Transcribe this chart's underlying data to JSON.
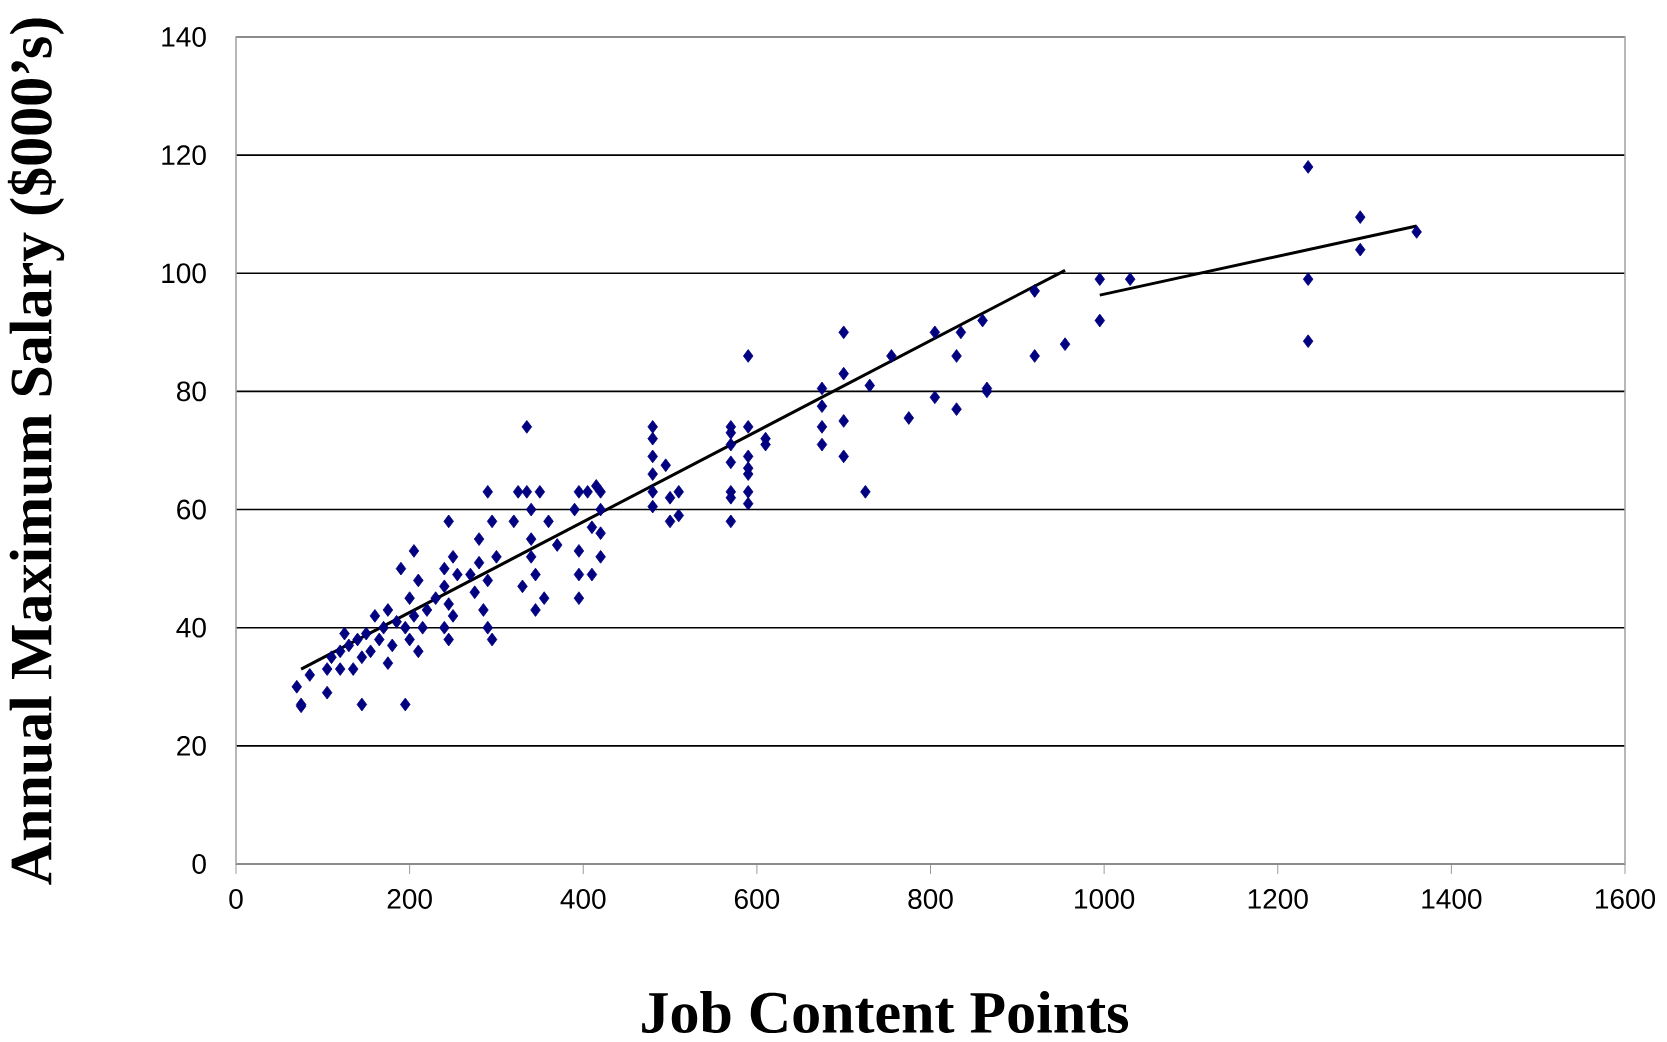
{
  "chart_data": {
    "type": "scatter",
    "xlabel": "Job Content Points",
    "ylabel": "Annual Maximum Salary ($000’s)",
    "xlim": [
      0,
      1600
    ],
    "ylim": [
      0,
      140
    ],
    "xticks": [
      0,
      200,
      400,
      600,
      800,
      1000,
      1200,
      1400,
      1600
    ],
    "yticks": [
      0,
      20,
      40,
      60,
      80,
      100,
      120,
      140
    ],
    "grid": "y",
    "marker": "diamond",
    "series": [
      {
        "color": "#000080",
        "x": [
          70,
          75,
          75,
          85,
          105,
          105,
          110,
          120,
          120,
          125,
          130,
          135,
          140,
          145,
          145,
          150,
          155,
          160,
          165,
          170,
          175,
          175,
          180,
          185,
          190,
          195,
          195,
          200,
          200,
          205,
          205,
          210,
          210,
          215,
          220,
          230,
          240,
          240,
          245,
          245,
          250,
          250,
          255,
          245,
          240,
          270,
          275,
          280,
          280,
          285,
          290,
          290,
          295,
          295,
          300,
          290,
          320,
          325,
          330,
          335,
          335,
          340,
          340,
          340,
          345,
          345,
          350,
          355,
          360,
          370,
          390,
          395,
          395,
          395,
          395,
          405,
          410,
          410,
          415,
          420,
          420,
          420,
          420,
          480,
          480,
          480,
          480,
          480,
          480,
          495,
          500,
          500,
          510,
          510,
          570,
          570,
          570,
          570,
          570,
          570,
          570,
          590,
          590,
          590,
          590,
          590,
          590,
          590,
          610,
          610,
          675,
          675,
          675,
          675,
          700,
          700,
          700,
          700,
          725,
          730,
          755,
          775,
          805,
          805,
          830,
          830,
          835,
          860,
          865,
          865,
          920,
          920,
          955,
          995,
          995,
          1030,
          1235,
          1235,
          1235,
          1295,
          1295,
          1360
        ],
        "values": [
          30,
          27,
          26.7,
          32,
          29,
          33,
          35,
          33,
          36,
          39,
          37,
          33,
          38,
          27,
          35,
          39,
          36,
          42,
          38,
          40,
          34,
          43,
          37,
          41,
          50,
          40,
          27,
          45,
          38,
          53,
          42,
          36,
          48,
          40,
          43,
          45,
          50,
          47,
          58,
          44,
          52,
          42,
          49,
          38,
          40,
          49,
          46,
          55,
          51,
          43,
          63,
          48,
          38,
          58,
          52,
          40,
          58,
          63,
          47,
          74,
          63,
          55,
          60,
          52,
          43,
          49,
          63,
          45,
          58,
          54,
          60,
          63,
          53,
          49,
          45,
          63,
          49,
          57,
          64,
          63,
          56,
          52,
          60,
          74,
          72,
          69,
          66,
          63,
          60.5,
          67.5,
          62,
          58,
          63,
          59,
          74,
          73,
          71,
          68,
          63,
          62,
          58,
          86,
          74,
          69,
          67,
          66,
          63,
          61,
          72,
          71,
          80.5,
          77.5,
          74,
          71,
          90,
          83,
          75,
          69,
          63,
          81,
          86,
          75.5,
          90,
          79,
          86,
          77,
          90,
          92,
          80.5,
          80,
          97,
          86,
          88,
          99,
          92,
          99,
          118,
          99,
          88.5,
          109.5,
          104,
          107
        ]
      },
      {
        "type": "line",
        "color": "#000000",
        "marker": "none",
        "line_style": "solid",
        "x": [
          75,
          955
        ],
        "values": [
          33,
          100.5
        ]
      },
      {
        "type": "line",
        "color": "#000000",
        "marker": "none",
        "line_style": "solid",
        "x": [
          995,
          1360
        ],
        "values": [
          96.3,
          108
        ]
      }
    ]
  }
}
